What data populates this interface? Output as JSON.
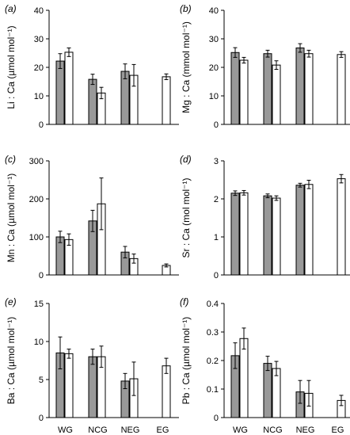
{
  "chart_data": [
    {
      "type": "bar",
      "panel_label": "(a)",
      "ylabel": "Li : Ca (µmol mol⁻¹)",
      "categories": [
        "WG",
        "NCG",
        "NEG",
        "EG"
      ],
      "ylim": [
        0,
        40
      ],
      "yticks": [
        "0",
        "10",
        "20",
        "30",
        "40"
      ],
      "series": [
        {
          "values": [
            22.2,
            15.8,
            18.6,
            0
          ],
          "errors": [
            2.6,
            1.8,
            2.6,
            0
          ],
          "color": "#999999"
        },
        {
          "values": [
            25.3,
            11.0,
            17.2,
            16.7
          ],
          "errors": [
            1.5,
            2.0,
            3.8,
            1.0
          ],
          "color": "#ffffff"
        }
      ]
    },
    {
      "type": "bar",
      "panel_label": "(b)",
      "ylabel": "Mg : Ca (mmol mol⁻¹)",
      "categories": [
        "WG",
        "NCG",
        "NEG",
        "EG"
      ],
      "ylim": [
        0,
        40
      ],
      "yticks": [
        "0",
        "10",
        "20",
        "30",
        "40"
      ],
      "series": [
        {
          "values": [
            25.2,
            24.8,
            26.8,
            0
          ],
          "errors": [
            1.7,
            1.2,
            1.5,
            0
          ],
          "color": "#999999"
        },
        {
          "values": [
            22.5,
            20.8,
            24.8,
            24.5
          ],
          "errors": [
            1.0,
            1.5,
            1.2,
            1.0
          ],
          "color": "#ffffff"
        }
      ]
    },
    {
      "type": "bar",
      "panel_label": "(c)",
      "ylabel": "Mn : Ca (µmol mol⁻¹)",
      "categories": [
        "WG",
        "NCG",
        "NEG",
        "EG"
      ],
      "ylim": [
        0,
        300
      ],
      "yticks": [
        "0",
        "100",
        "200",
        "300"
      ],
      "series": [
        {
          "values": [
            100,
            142,
            60,
            0
          ],
          "errors": [
            15,
            28,
            15,
            0
          ],
          "color": "#999999"
        },
        {
          "values": [
            93,
            187,
            43,
            25
          ],
          "errors": [
            15,
            68,
            12,
            4
          ],
          "color": "#ffffff"
        }
      ]
    },
    {
      "type": "bar",
      "panel_label": "(d)",
      "ylabel": "Sr : Ca (mol mol⁻¹)",
      "categories": [
        "WG",
        "NCG",
        "NEG",
        "EG"
      ],
      "ylim": [
        0,
        3
      ],
      "yticks": [
        "0",
        "1",
        "2",
        "3"
      ],
      "series": [
        {
          "values": [
            2.15,
            2.08,
            2.36,
            0
          ],
          "errors": [
            0.06,
            0.05,
            0.05,
            0
          ],
          "color": "#999999"
        },
        {
          "values": [
            2.16,
            2.02,
            2.38,
            2.53
          ],
          "errors": [
            0.06,
            0.06,
            0.11,
            0.11
          ],
          "color": "#ffffff"
        }
      ]
    },
    {
      "type": "bar",
      "panel_label": "(e)",
      "ylabel": "Ba : Ca (µmol mol⁻¹)",
      "categories": [
        "WG",
        "NCG",
        "NEG",
        "EG"
      ],
      "ylim": [
        0,
        15
      ],
      "yticks": [
        "0",
        "5",
        "10",
        "15"
      ],
      "series": [
        {
          "values": [
            8.5,
            8.0,
            4.8,
            0
          ],
          "errors": [
            2.1,
            1.0,
            1.0,
            0
          ],
          "color": "#999999"
        },
        {
          "values": [
            8.4,
            8.0,
            5.1,
            6.8
          ],
          "errors": [
            0.6,
            1.4,
            2.2,
            1.0
          ],
          "color": "#ffffff"
        }
      ]
    },
    {
      "type": "bar",
      "panel_label": "(f)",
      "ylabel": "Pb : Ca (µmol mol⁻¹)",
      "categories": [
        "WG",
        "NCG",
        "NEG",
        "EG"
      ],
      "ylim": [
        0,
        0.4
      ],
      "yticks": [
        "0",
        "0.1",
        "0.2",
        "0.3",
        "0.4"
      ],
      "series": [
        {
          "values": [
            0.217,
            0.19,
            0.09,
            0
          ],
          "errors": [
            0.045,
            0.025,
            0.04,
            0
          ],
          "color": "#999999"
        },
        {
          "values": [
            0.277,
            0.172,
            0.085,
            0.06
          ],
          "errors": [
            0.037,
            0.025,
            0.045,
            0.018
          ],
          "color": "#ffffff"
        }
      ]
    }
  ]
}
